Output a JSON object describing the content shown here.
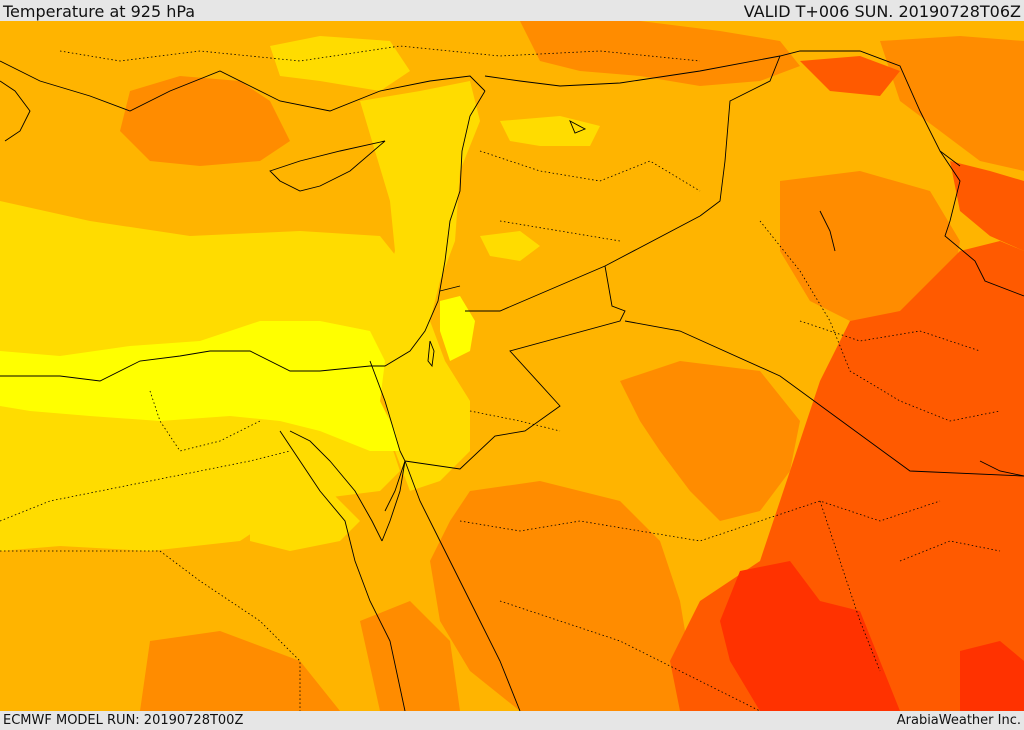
{
  "header": {
    "title": "Temperature at 925 hPa",
    "valid": "VALID T+006 SUN. 20190728T06Z"
  },
  "footer": {
    "model_run": "ECMWF MODEL RUN: 20190728T00Z",
    "credit": "ArabiaWeather Inc."
  },
  "palette": {
    "yellow": "#ffff00",
    "light_gold": "#ffdc00",
    "gold": "#ffb400",
    "orange": "#ff8c00",
    "dark_orange": "#ff5a00",
    "red": "#ff3200",
    "border": "#000000"
  }
}
